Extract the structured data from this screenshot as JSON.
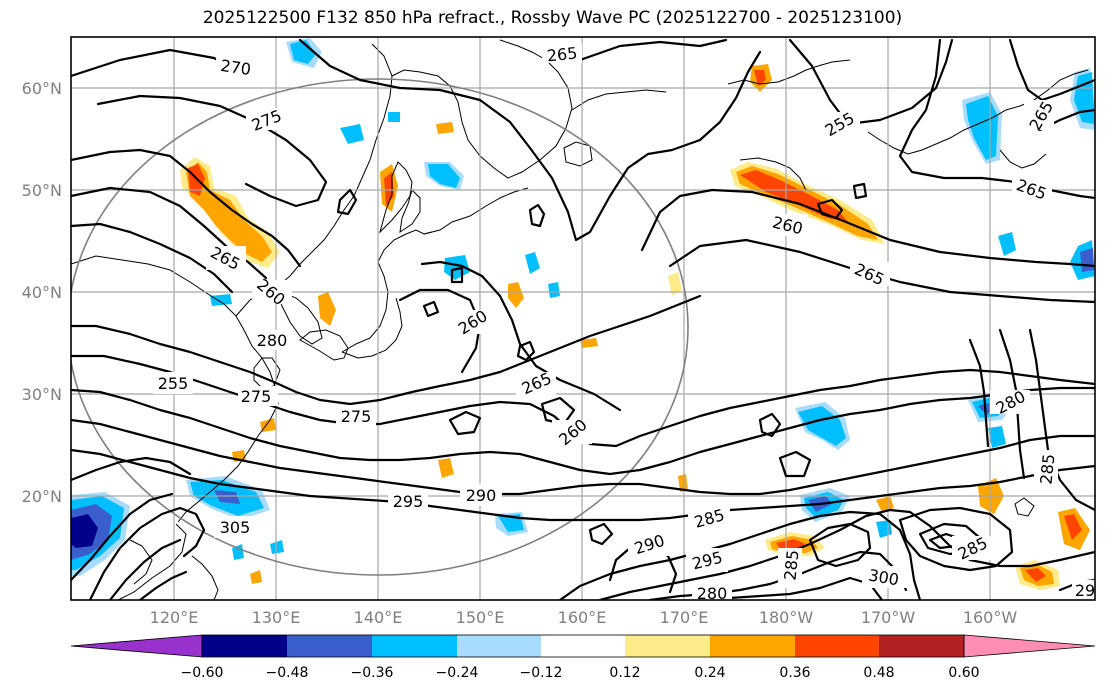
{
  "title": "2025122500 F132 850 hPa refract., Rossby Wave PC (2025122700 - 2025123100)",
  "lat_labels": [
    "60°N",
    "50°N",
    "40°N",
    "30°N",
    "20°N"
  ],
  "lon_labels": [
    "120°E",
    "130°E",
    "140°E",
    "150°E",
    "160°E",
    "170°E",
    "180°W",
    "170°W",
    "160°W"
  ],
  "contour_labels": [
    "270",
    "265",
    "275",
    "255",
    "265",
    "265",
    "260",
    "265",
    "265",
    "260",
    "260",
    "280",
    "255",
    "275",
    "265",
    "260",
    "275",
    "280",
    "285",
    "295",
    "290",
    "305",
    "285",
    "290",
    "295",
    "285",
    "285",
    "300",
    "280",
    "29"
  ],
  "colorbar": {
    "colors": [
      "#9932cc",
      "#00008b",
      "#3a5fcd",
      "#00bfff",
      "#a8dcff",
      "#ffffff",
      "#ffeb8a",
      "#ffa500",
      "#ff4500",
      "#b22222",
      "#ff8db4"
    ],
    "tick_labels": [
      "−0.60",
      "−0.48",
      "−0.36",
      "−0.24",
      "−0.12",
      "0.12",
      "0.24",
      "0.36",
      "0.48",
      "0.60"
    ]
  }
}
